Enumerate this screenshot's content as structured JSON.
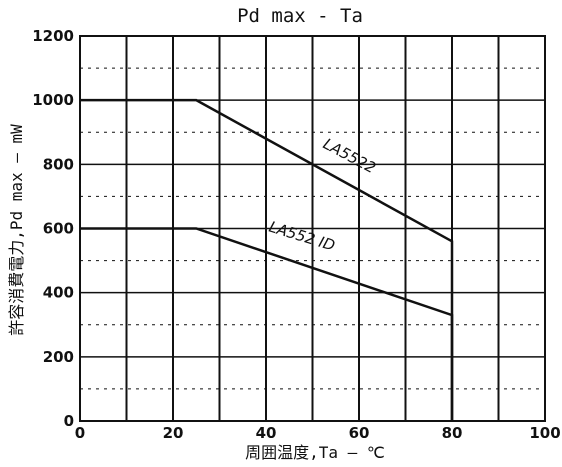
{
  "chart_data": {
    "type": "line",
    "title": "Pd max - Ta",
    "xlabel": "周囲温度,Ta — ℃",
    "ylabel": "許容消費電力,Pd max — mW",
    "xlim": [
      0,
      100
    ],
    "ylim": [
      0,
      1200
    ],
    "x_ticks": [
      "0",
      "20",
      "40",
      "60",
      "80",
      "100"
    ],
    "y_ticks": [
      "0",
      "200",
      "400",
      "600",
      "800",
      "1000",
      "1200"
    ],
    "grid": true,
    "legend": "inline labels",
    "series": [
      {
        "name": "LA5522",
        "x": [
          0,
          25,
          80,
          80
        ],
        "y": [
          1000,
          1000,
          560,
          0
        ]
      },
      {
        "name": "LA552 ID",
        "x": [
          0,
          25,
          80,
          80
        ],
        "y": [
          600,
          600,
          330,
          0
        ]
      }
    ]
  }
}
